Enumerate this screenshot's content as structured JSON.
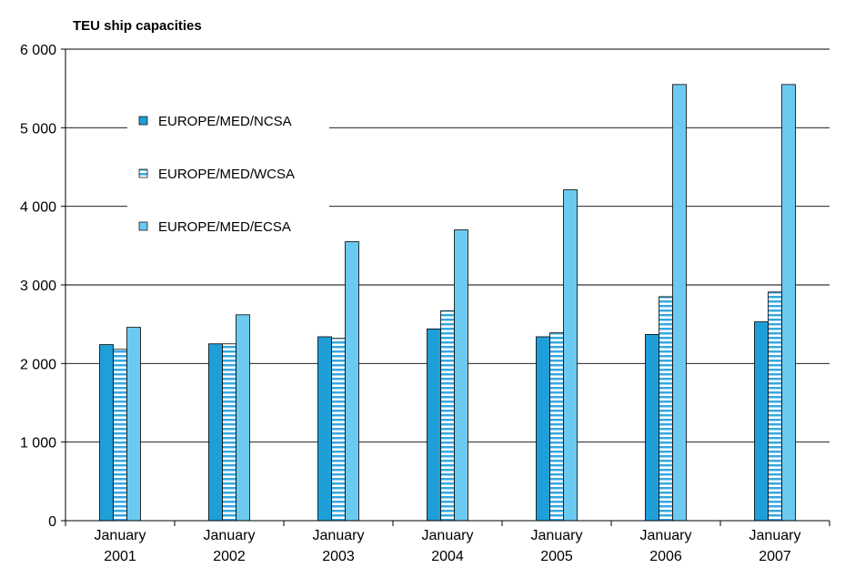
{
  "chart_data": {
    "type": "bar",
    "title": "",
    "ylabel": "TEU ship capacities",
    "xlabel": "",
    "ylim": [
      0,
      6000
    ],
    "yticks": [
      0,
      1000,
      2000,
      3000,
      4000,
      5000,
      6000
    ],
    "ytick_labels": [
      "0",
      "1 000",
      "2 000",
      "3 000",
      "4 000",
      "5 000",
      "6 000"
    ],
    "grid": true,
    "legend_position": "top-left",
    "categories": [
      [
        "January",
        "2001"
      ],
      [
        "January",
        "2002"
      ],
      [
        "January",
        "2003"
      ],
      [
        "January",
        "2004"
      ],
      [
        "January",
        "2005"
      ],
      [
        "January",
        "2006"
      ],
      [
        "January",
        "2007"
      ]
    ],
    "series": [
      {
        "name": "EUROPE/MED/NCSA",
        "values": [
          2240,
          2250,
          2340,
          2440,
          2340,
          2370,
          2530
        ],
        "color": "#1e9fd8",
        "pattern": "solid"
      },
      {
        "name": "EUROPE/MED/WCSA",
        "values": [
          2180,
          2250,
          2320,
          2670,
          2390,
          2850,
          2910
        ],
        "color": "#35a8e0",
        "pattern": "horizontal-stripes"
      },
      {
        "name": "EUROPE/MED/ECSA",
        "values": [
          2460,
          2620,
          3550,
          3700,
          4210,
          5550,
          5550
        ],
        "color": "#6ccaf0",
        "pattern": "solid"
      }
    ]
  }
}
